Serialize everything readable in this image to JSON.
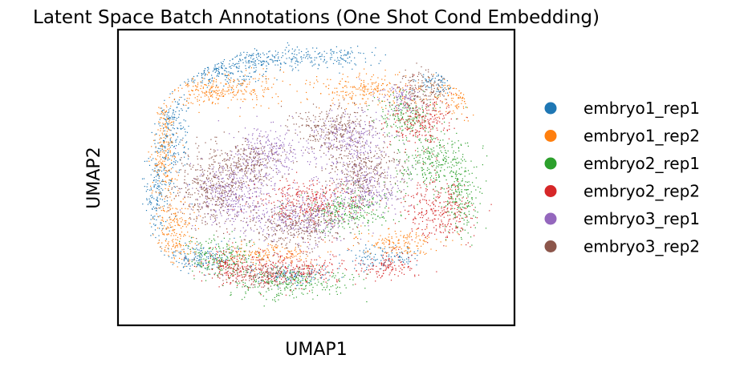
{
  "chart_data": {
    "type": "scatter",
    "title": "Latent Space Batch Annotations (One Shot Cond Embedding)",
    "xlabel": "UMAP1",
    "ylabel": "UMAP2",
    "grid": false,
    "xticks": false,
    "yticks": false,
    "legend_position": "right",
    "series": [
      {
        "name": "embryo1_rep1",
        "color": "#1f77b4"
      },
      {
        "name": "embryo1_rep2",
        "color": "#ff7f0e"
      },
      {
        "name": "embryo2_rep1",
        "color": "#2ca02c"
      },
      {
        "name": "embryo2_rep2",
        "color": "#d62728"
      },
      {
        "name": "embryo3_rep1",
        "color": "#9467bd"
      },
      {
        "name": "embryo3_rep2",
        "color": "#8c564b"
      }
    ]
  }
}
